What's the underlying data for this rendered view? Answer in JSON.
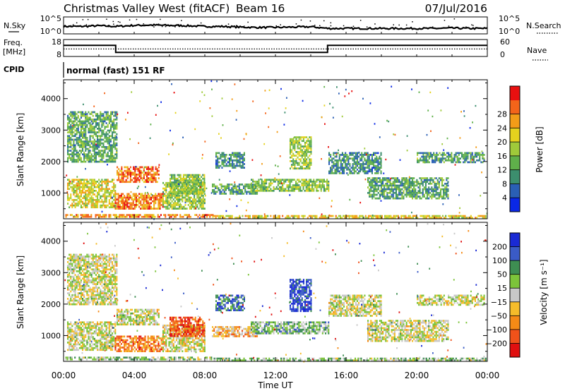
{
  "header": {
    "station": "Christmas Valley West (fitACF)",
    "beam": "Beam 16",
    "date": "07/Jul/2016"
  },
  "chart_data": [
    {
      "type": "line",
      "panel": "noise",
      "left_label": "N.Sky",
      "right_label": "N.Search",
      "left_ticks": [
        "10^5",
        "10^0"
      ],
      "right_ticks": [
        "10^5",
        "10^0"
      ],
      "x": [
        0,
        1,
        2,
        3,
        4,
        5,
        6,
        7,
        8,
        9,
        10,
        11,
        12,
        13,
        14,
        15,
        16,
        17,
        18,
        19,
        20,
        21,
        22,
        23,
        24
      ],
      "series": [
        {
          "values": [
            2.2,
            2.2,
            2.4,
            2.2,
            2.5,
            2.6,
            2.5,
            2.4,
            2.2,
            2.2,
            2.0,
            1.9,
            1.9,
            2.0,
            2.1,
            1.6,
            1.6,
            1.6,
            1.6,
            1.6,
            1.6,
            1.6,
            1.7,
            1.6,
            1.6
          ]
        }
      ],
      "ylim": [
        0,
        5
      ]
    },
    {
      "type": "line",
      "panel": "frequency",
      "left_label": "Freq.",
      "left_unit": "[MHz]",
      "right_label": "Nave",
      "left_ticks": [
        "18",
        "8"
      ],
      "right_ticks": [
        "60",
        "0"
      ],
      "ylim": [
        8,
        18
      ],
      "series": [
        {
          "style": "solid",
          "x": [
            0,
            2.95,
            2.95,
            14.95,
            14.95,
            24
          ],
          "values": [
            14.6,
            14.6,
            10.4,
            10.4,
            14.6,
            14.6
          ]
        },
        {
          "style": "dotted",
          "x": [
            0,
            24
          ],
          "values": [
            12.4,
            12.4
          ]
        }
      ]
    },
    {
      "type": "table",
      "panel": "cpid",
      "label": "CPID",
      "text": "normal (fast) 151 RF"
    },
    {
      "type": "heatmap",
      "panel": "power",
      "ylabel": "Slant Range [km]",
      "xlim": [
        0,
        24
      ],
      "ylim": [
        180,
        4600
      ],
      "yticks": [
        "1000",
        "2000",
        "3000",
        "4000"
      ],
      "colorbar_label": "Power [dB]",
      "colorbar_ticks": [
        "4",
        "8",
        "12",
        "16",
        "20",
        "24",
        "28"
      ],
      "colors": [
        "#0a28e6",
        "#2a5fb5",
        "#3c8e6e",
        "#5fb04a",
        "#9fca3a",
        "#e5d21e",
        "#f39c18",
        "#f4641a",
        "#e81010"
      ],
      "regions": [
        {
          "t0": 0.1,
          "t1": 8.5,
          "r0": 220,
          "r1": 330,
          "level": 6.2
        },
        {
          "t0": 8.5,
          "t1": 23.9,
          "r0": 200,
          "r1": 300,
          "level": 5.0
        },
        {
          "t0": 0.2,
          "t1": 2.9,
          "r0": 550,
          "r1": 1450,
          "level": 4.6
        },
        {
          "t0": 2.9,
          "t1": 5.6,
          "r0": 500,
          "r1": 1000,
          "level": 6.5
        },
        {
          "t0": 3.0,
          "t1": 5.4,
          "r0": 1350,
          "r1": 1850,
          "level": 6.9
        },
        {
          "t0": 5.6,
          "t1": 8.0,
          "r0": 500,
          "r1": 1350,
          "level": 3.8
        },
        {
          "t0": 6.0,
          "t1": 8.0,
          "r0": 1000,
          "r1": 1600,
          "level": 3.6
        },
        {
          "t0": 8.4,
          "t1": 11.0,
          "r0": 1000,
          "r1": 1300,
          "level": 2.5
        },
        {
          "t0": 10.6,
          "t1": 15.0,
          "r0": 1050,
          "r1": 1450,
          "level": 3.4
        },
        {
          "t0": 12.8,
          "t1": 14.0,
          "r0": 1800,
          "r1": 2800,
          "level": 3.8
        },
        {
          "t0": 17.2,
          "t1": 21.8,
          "r0": 800,
          "r1": 1500,
          "level": 2.6
        },
        {
          "t0": 0.2,
          "t1": 3.0,
          "r0": 2000,
          "r1": 3600,
          "level": 2.8
        },
        {
          "t0": 8.6,
          "t1": 10.2,
          "r0": 1800,
          "r1": 2300,
          "level": 2.0
        },
        {
          "t0": 15.0,
          "t1": 18.0,
          "r0": 1600,
          "r1": 2300,
          "level": 2.0
        },
        {
          "t0": 20.0,
          "t1": 23.8,
          "r0": 2000,
          "r1": 2300,
          "level": 2.2
        }
      ]
    },
    {
      "type": "heatmap",
      "panel": "velocity",
      "xlabel": "Time UT",
      "ylabel": "Slant Range [km]",
      "xlim": [
        0,
        24
      ],
      "ylim": [
        180,
        4600
      ],
      "xticks": [
        "00:00",
        "04:00",
        "08:00",
        "12:00",
        "16:00",
        "20:00",
        "00:00"
      ],
      "yticks": [
        "1000",
        "2000",
        "3000",
        "4000"
      ],
      "colorbar_label": "Velocity [m s⁻¹]",
      "colorbar_ticks": [
        "200",
        "100",
        "50",
        "15",
        "−15",
        "−50",
        "−100",
        "−200"
      ],
      "colors": [
        "#1a2ad4",
        "#3a5bc6",
        "#3e8e52",
        "#7cc43a",
        "#c8c8c8",
        "#f5bc2a",
        "#f58a16",
        "#f0521a",
        "#e01010"
      ],
      "regions": [
        {
          "t0": 0.1,
          "t1": 8.5,
          "r0": 220,
          "r1": 330,
          "level": 3.3
        },
        {
          "t0": 8.5,
          "t1": 23.9,
          "r0": 200,
          "r1": 300,
          "level": 3.1
        },
        {
          "t0": 0.2,
          "t1": 2.9,
          "r0": 550,
          "r1": 1450,
          "level": 4.0
        },
        {
          "t0": 2.9,
          "t1": 5.6,
          "r0": 500,
          "r1": 1000,
          "level": 6.2
        },
        {
          "t0": 3.0,
          "t1": 5.4,
          "r0": 1350,
          "r1": 1850,
          "level": 4.0
        },
        {
          "t0": 5.6,
          "t1": 8.0,
          "r0": 500,
          "r1": 1350,
          "level": 4.2
        },
        {
          "t0": 6.0,
          "t1": 8.0,
          "r0": 1000,
          "r1": 1600,
          "level": 7.0
        },
        {
          "t0": 8.4,
          "t1": 11.0,
          "r0": 1000,
          "r1": 1300,
          "level": 5.2
        },
        {
          "t0": 10.6,
          "t1": 15.0,
          "r0": 1050,
          "r1": 1450,
          "level": 2.8
        },
        {
          "t0": 12.8,
          "t1": 14.0,
          "r0": 1800,
          "r1": 2800,
          "level": 0.4
        },
        {
          "t0": 17.2,
          "t1": 21.8,
          "r0": 800,
          "r1": 1500,
          "level": 4.0
        },
        {
          "t0": 0.2,
          "t1": 3.0,
          "r0": 2000,
          "r1": 3600,
          "level": 4.0
        },
        {
          "t0": 8.6,
          "t1": 10.2,
          "r0": 1800,
          "r1": 2300,
          "level": 1.4
        },
        {
          "t0": 15.0,
          "t1": 18.0,
          "r0": 1600,
          "r1": 2300,
          "level": 4.0
        },
        {
          "t0": 20.0,
          "t1": 23.8,
          "r0": 2000,
          "r1": 2300,
          "level": 4.0
        }
      ]
    }
  ]
}
